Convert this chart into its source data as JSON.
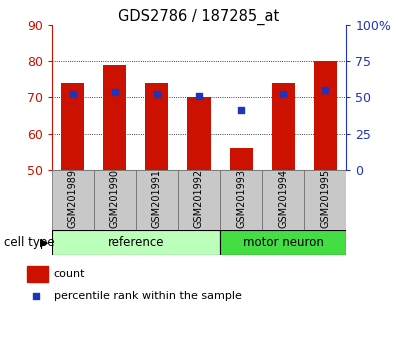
{
  "title": "GDS2786 / 187285_at",
  "samples": [
    "GSM201989",
    "GSM201990",
    "GSM201991",
    "GSM201992",
    "GSM201993",
    "GSM201994",
    "GSM201995"
  ],
  "counts": [
    74,
    79,
    74,
    70,
    56,
    74,
    80
  ],
  "percentile_left_axis": [
    71.0,
    71.5,
    71.0,
    70.5,
    66.5,
    71.0,
    72.0
  ],
  "ylim_left": [
    50,
    90
  ],
  "ylim_right": [
    0,
    100
  ],
  "yticks_left": [
    50,
    60,
    70,
    80,
    90
  ],
  "yticks_right": [
    0,
    25,
    50,
    75,
    100
  ],
  "ytick_labels_right": [
    "0",
    "25",
    "50",
    "75",
    "100%"
  ],
  "bar_color": "#cc1100",
  "percentile_color": "#2233bb",
  "bar_width": 0.55,
  "tick_bg_color": "#c8c8c8",
  "reference_color": "#bbffbb",
  "motor_neuron_color": "#44dd44",
  "left_axis_color": "#cc1100",
  "right_axis_color": "#2233bb",
  "legend_count_label": "count",
  "legend_percentile_label": "percentile rank within the sample",
  "cell_type_label": "cell type",
  "ref_count": 4,
  "motor_count": 3
}
